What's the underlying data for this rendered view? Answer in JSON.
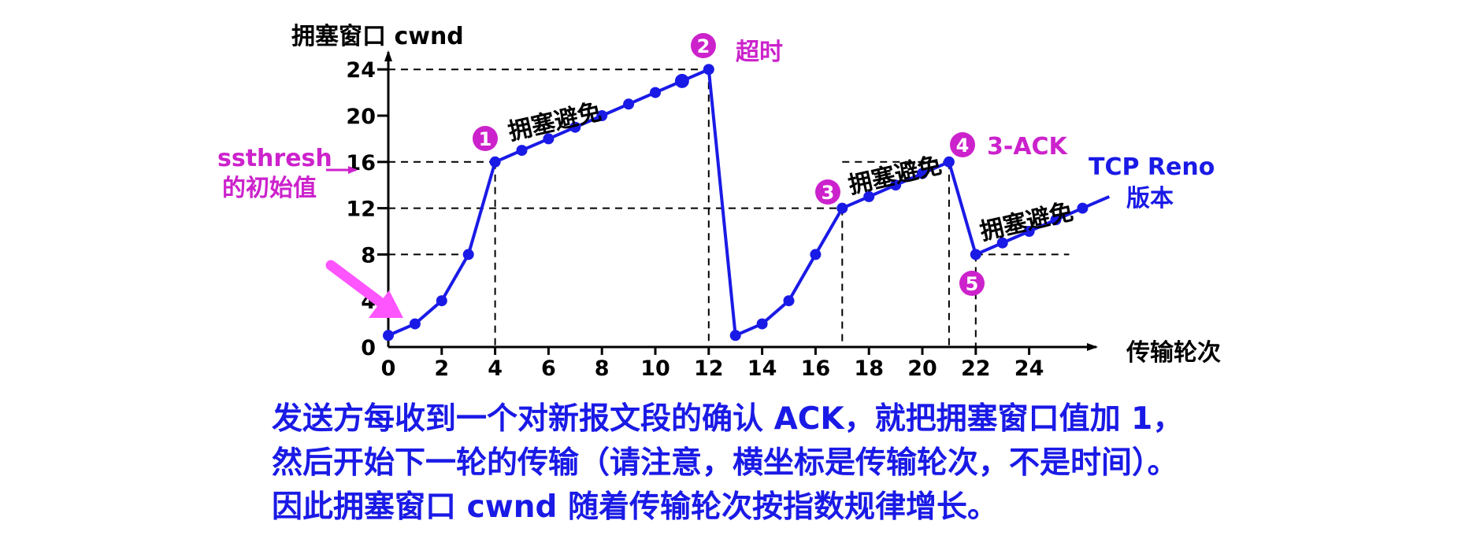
{
  "chart_data": {
    "type": "line",
    "ylabel": "拥塞窗口  cwnd",
    "xlabel": "传输轮次",
    "xlim": [
      0,
      27
    ],
    "ylim": [
      0,
      25
    ],
    "x_ticks": [
      0,
      2,
      4,
      6,
      8,
      10,
      12,
      14,
      16,
      18,
      20,
      22,
      24
    ],
    "y_ticks": [
      0,
      4,
      8,
      12,
      16,
      20,
      24
    ],
    "segments": [
      {
        "x": [
          0,
          1,
          2,
          3,
          4,
          5,
          6,
          7,
          8,
          9,
          10,
          11,
          12
        ],
        "y": [
          1,
          2,
          4,
          8,
          16,
          17,
          18,
          19,
          20,
          21,
          22,
          23,
          24
        ]
      },
      {
        "x": [
          12,
          13
        ],
        "y": [
          24,
          1
        ]
      },
      {
        "x": [
          13,
          14,
          15,
          16,
          17,
          18,
          19,
          20,
          21
        ],
        "y": [
          1,
          2,
          4,
          8,
          12,
          13,
          14,
          15,
          16
        ]
      },
      {
        "x": [
          21,
          22
        ],
        "y": [
          16,
          8
        ]
      },
      {
        "x": [
          22,
          23,
          24,
          25,
          26
        ],
        "y": [
          8,
          9,
          10,
          11,
          12
        ]
      }
    ],
    "reno_line_end": {
      "x": 27,
      "y": 13
    },
    "guides": [
      {
        "y": 24,
        "x_end": 12
      },
      {
        "y": 16,
        "x_end": 4
      },
      {
        "y": 16,
        "x_start": 17,
        "x_end": 21
      },
      {
        "y": 12,
        "x_end": 17
      },
      {
        "y": 8,
        "x_end": 3
      },
      {
        "y": 8,
        "x_start": 22,
        "x_end": 25.5
      }
    ],
    "vguides": [
      4,
      12,
      17,
      21,
      22
    ],
    "annotations": {
      "ssthresh_line1": "ssthresh",
      "ssthresh_line2": "的初始值",
      "timeout": "超时",
      "three_ack": "3-ACK",
      "reno_line1": "TCP Reno",
      "reno_line2": "版本",
      "avoid": "拥塞避免"
    },
    "markers": [
      "1",
      "2",
      "3",
      "4",
      "5"
    ],
    "colors": {
      "line": "#1a1ae6",
      "accent": "#cc22cc",
      "arrow": "#ff55ff",
      "axis": "#000000"
    }
  },
  "caption": {
    "line1": "发送方每收到一个对新报文段的确认 ACK，就把拥塞窗口值加 1，",
    "line2": "然后开始下一轮的传输（请注意，横坐标是传输轮次，不是时间）。",
    "line3": "因此拥塞窗口 cwnd 随着传输轮次按指数规律增长。"
  }
}
